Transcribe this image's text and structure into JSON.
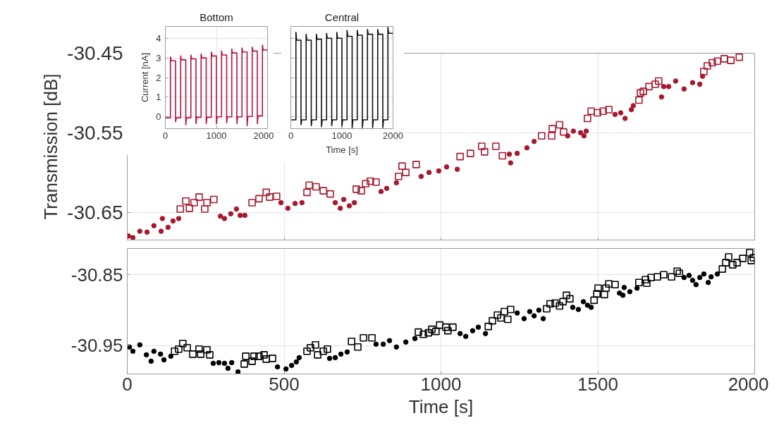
{
  "chart_data": [
    {
      "type": "scatter",
      "ylabel": "Transmission [dB]",
      "xlim": [
        0,
        2000
      ],
      "xticks": [
        0,
        500,
        1000,
        1500,
        2000
      ],
      "ylim": [
        -30.685,
        -30.45
      ],
      "yticks": [
        -30.45,
        -30.55,
        -30.65
      ],
      "grid": true,
      "tick_labels": "y",
      "series": [
        {
          "marker": "circle",
          "color": "#a6192e",
          "x": [
            4,
            18,
            40,
            63,
            85,
            108,
            112,
            130,
            146,
            164,
            297,
            310,
            330,
            348,
            360,
            375,
            490,
            512,
            535,
            557,
            663,
            679,
            690,
            708,
            724,
            809,
            827,
            858,
            937,
            962,
            993,
            1018,
            1052,
            1218,
            1222,
            1243,
            1274,
            1297,
            1404,
            1422,
            1445,
            1456,
            1463,
            1555,
            1573,
            1587,
            1607,
            1613,
            1703,
            1710,
            1726,
            1748,
            1775,
            1802,
            1825,
            1834
          ],
          "values": [
            -30.68,
            -30.682,
            -30.674,
            -30.675,
            -30.667,
            -30.674,
            -30.658,
            -30.669,
            -30.661,
            -30.658,
            -30.655,
            -30.658,
            -30.652,
            -30.646,
            -30.654,
            -30.654,
            -30.638,
            -30.645,
            -30.639,
            -30.638,
            -30.638,
            -30.645,
            -30.634,
            -30.642,
            -30.638,
            -30.624,
            -30.62,
            -30.613,
            -30.605,
            -30.6,
            -30.598,
            -30.593,
            -30.596,
            -30.577,
            -30.588,
            -30.576,
            -30.569,
            -30.561,
            -30.554,
            -30.548,
            -30.55,
            -30.554,
            -30.548,
            -30.527,
            -30.525,
            -30.532,
            -30.521,
            -30.516,
            -30.505,
            -30.492,
            -30.492,
            -30.485,
            -30.495,
            -30.487,
            -30.489,
            -30.479
          ]
        },
        {
          "marker": "square",
          "color": "#a6192e",
          "x": [
            169,
            187,
            198,
            213,
            229,
            247,
            254,
            276,
            398,
            420,
            443,
            454,
            476,
            573,
            580,
            602,
            625,
            647,
            730,
            746,
            760,
            775,
            793,
            865,
            876,
            888,
            921,
            1061,
            1094,
            1130,
            1139,
            1175,
            1196,
            1321,
            1353,
            1355,
            1378,
            1391,
            1467,
            1479,
            1499,
            1517,
            1535,
            1631,
            1636,
            1645,
            1663,
            1683,
            1694,
            1838,
            1849,
            1865,
            1881,
            1903,
            1924,
            1951
          ],
          "values": [
            -30.646,
            -30.636,
            -30.645,
            -30.638,
            -30.631,
            -30.646,
            -30.638,
            -30.634,
            -30.638,
            -30.633,
            -30.625,
            -30.631,
            -30.63,
            -30.625,
            -30.616,
            -30.618,
            -30.623,
            -30.627,
            -30.621,
            -30.623,
            -30.614,
            -30.611,
            -30.612,
            -30.605,
            -30.592,
            -30.6,
            -30.59,
            -30.58,
            -30.576,
            -30.567,
            -30.574,
            -30.567,
            -30.579,
            -30.554,
            -30.554,
            -30.545,
            -30.54,
            -30.549,
            -30.532,
            -30.523,
            -30.525,
            -30.523,
            -30.521,
            -30.509,
            -30.5,
            -30.498,
            -30.492,
            -30.489,
            -30.485,
            -30.473,
            -30.466,
            -30.462,
            -30.46,
            -30.457,
            -30.459,
            -30.455
          ]
        }
      ]
    },
    {
      "type": "scatter",
      "xlabel": "Time [s]",
      "xlim": [
        0,
        2000
      ],
      "xticks": [
        0,
        500,
        1000,
        1500,
        2000
      ],
      "ylim": [
        -30.99,
        -30.813
      ],
      "yticks": [
        -30.85,
        -30.95
      ],
      "grid": true,
      "series": [
        {
          "marker": "circle",
          "color": "#000000",
          "x": [
            7,
            18,
            40,
            61,
            76,
            85,
            106,
            117,
            139,
            274,
            292,
            310,
            321,
            333,
            353,
            479,
            506,
            524,
            539,
            548,
            645,
            663,
            681,
            701,
            793,
            816,
            836,
            858,
            888,
            917,
            1061,
            1079,
            1101,
            1119,
            1142,
            1243,
            1265,
            1283,
            1297,
            1312,
            1326,
            1420,
            1438,
            1454,
            1467,
            1479,
            1569,
            1584,
            1580,
            1602,
            1625,
            1775,
            1791,
            1802,
            1813,
            1825,
            1838,
            1852,
            1861,
            1881
          ],
          "values": [
            -30.952,
            -30.958,
            -30.949,
            -30.963,
            -30.972,
            -30.958,
            -30.962,
            -30.97,
            -30.965,
            -30.975,
            -30.974,
            -30.975,
            -30.982,
            -30.974,
            -30.987,
            -30.98,
            -30.983,
            -30.978,
            -30.973,
            -30.967,
            -30.968,
            -30.967,
            -30.962,
            -30.959,
            -30.948,
            -30.948,
            -30.943,
            -30.952,
            -30.945,
            -30.94,
            -30.933,
            -30.937,
            -30.929,
            -30.924,
            -30.933,
            -30.904,
            -30.912,
            -30.902,
            -30.908,
            -30.9,
            -30.912,
            -30.896,
            -30.899,
            -30.888,
            -30.893,
            -30.896,
            -30.876,
            -30.868,
            -30.879,
            -30.874,
            -30.869,
            -30.854,
            -30.851,
            -30.858,
            -30.864,
            -30.854,
            -30.849,
            -30.861,
            -30.853,
            -30.849
          ]
        },
        {
          "marker": "square",
          "color": "#000000",
          "x": [
            151,
            164,
            177,
            191,
            209,
            229,
            234,
            254,
            263,
            373,
            378,
            398,
            404,
            420,
            436,
            443,
            463,
            573,
            584,
            600,
            607,
            625,
            638,
            715,
            735,
            753,
            780,
            928,
            944,
            960,
            971,
            984,
            996,
            1016,
            1022,
            1038,
            1151,
            1164,
            1180,
            1191,
            1202,
            1213,
            1222,
            1337,
            1348,
            1364,
            1378,
            1389,
            1400,
            1411,
            1488,
            1497,
            1501,
            1521,
            1526,
            1535,
            1555,
            1631,
            1652,
            1656,
            1670,
            1690,
            1710,
            1735,
            1753,
            1760,
            1897,
            1908,
            1917,
            1930,
            1944,
            1962,
            1984,
            1989,
            1996
          ],
          "values": [
            -30.958,
            -30.955,
            -30.947,
            -30.953,
            -30.962,
            -30.955,
            -30.962,
            -30.956,
            -30.963,
            -30.976,
            -30.965,
            -30.972,
            -30.965,
            -30.965,
            -30.963,
            -30.969,
            -30.968,
            -30.958,
            -30.953,
            -30.949,
            -30.963,
            -30.958,
            -30.955,
            -30.944,
            -30.952,
            -30.939,
            -30.939,
            -30.931,
            -30.934,
            -30.932,
            -30.927,
            -30.93,
            -30.921,
            -30.924,
            -30.929,
            -30.924,
            -30.923,
            -30.915,
            -30.907,
            -30.911,
            -30.902,
            -30.913,
            -30.899,
            -30.898,
            -30.891,
            -30.89,
            -30.894,
            -30.888,
            -30.879,
            -30.884,
            -30.886,
            -30.877,
            -30.869,
            -30.878,
            -30.869,
            -30.863,
            -30.864,
            -30.861,
            -30.857,
            -30.862,
            -30.854,
            -30.853,
            -30.85,
            -30.853,
            -30.845,
            -30.848,
            -30.842,
            -30.833,
            -30.825,
            -30.836,
            -30.833,
            -30.827,
            -30.819,
            -30.83,
            -30.826
          ]
        }
      ]
    },
    {
      "type": "line",
      "title": "Bottom",
      "ylabel": "Current [nA]",
      "xlim": [
        0,
        2000
      ],
      "xticks": [
        0,
        1000,
        2000
      ],
      "ylim": [
        -0.6,
        4.6
      ],
      "yticks": [
        0,
        1,
        2,
        3,
        4
      ],
      "grid": true,
      "series": [
        {
          "color": "#b5123a",
          "x": [
            0,
            100,
            100,
            115,
            200,
            200,
            215,
            300,
            300,
            315,
            400,
            400,
            415,
            500,
            500,
            515,
            600,
            600,
            615,
            700,
            700,
            715,
            800,
            800,
            815,
            900,
            900,
            915,
            1000,
            1000,
            1015,
            1100,
            1100,
            1115,
            1200,
            1200,
            1215,
            1300,
            1300,
            1315,
            1400,
            1400,
            1415,
            1500,
            1500,
            1515,
            1600,
            1600,
            1615,
            1700,
            1700,
            1715,
            1800,
            1800,
            1815,
            1900,
            1900,
            1915,
            2000
          ],
          "values": [
            -0.05,
            -0.05,
            3.05,
            2.85,
            2.85,
            -0.25,
            -0.05,
            -0.05,
            3.1,
            2.9,
            2.9,
            -0.4,
            -0.05,
            -0.05,
            3.15,
            2.95,
            2.95,
            -0.35,
            -0.02,
            -0.02,
            3.2,
            3.0,
            3.0,
            -0.35,
            -0.02,
            -0.02,
            3.3,
            3.1,
            3.1,
            -0.35,
            0,
            0,
            3.35,
            3.15,
            3.15,
            -0.3,
            0,
            0,
            3.45,
            3.25,
            3.25,
            -0.35,
            0,
            0,
            3.5,
            3.3,
            3.3,
            -0.45,
            0.02,
            0.02,
            3.55,
            3.35,
            3.35,
            -0.35,
            0.05,
            0.05,
            3.65,
            3.4,
            3.4
          ]
        }
      ]
    },
    {
      "type": "line",
      "title": "Central",
      "xlabel": "Time [s]",
      "xlim": [
        0,
        2000
      ],
      "xticks": [
        0,
        1000,
        2000
      ],
      "ylim": [
        -0.6,
        4.6
      ],
      "yticks": [
        0,
        1,
        2,
        3,
        4
      ],
      "grid": true,
      "tick_labels": "x",
      "series": [
        {
          "color": "#111111",
          "x": [
            0,
            100,
            100,
            115,
            200,
            200,
            215,
            300,
            300,
            315,
            400,
            400,
            415,
            500,
            500,
            515,
            600,
            600,
            615,
            700,
            700,
            715,
            800,
            800,
            815,
            900,
            900,
            915,
            1000,
            1000,
            1015,
            1100,
            1100,
            1115,
            1200,
            1200,
            1215,
            1300,
            1300,
            1315,
            1400,
            1400,
            1415,
            1500,
            1500,
            1515,
            1600,
            1600,
            1615,
            1700,
            1700,
            1715,
            1800,
            1800,
            1815,
            1900,
            1900,
            1915,
            2000
          ],
          "values": [
            -0.15,
            -0.15,
            4.3,
            3.9,
            3.9,
            -0.4,
            -0.15,
            -0.15,
            4.2,
            3.9,
            3.9,
            -0.45,
            -0.15,
            -0.15,
            4.2,
            3.95,
            3.95,
            -0.5,
            -0.15,
            -0.15,
            4.25,
            4.0,
            4.0,
            -0.45,
            -0.15,
            -0.15,
            4.3,
            4.0,
            4.0,
            -0.5,
            -0.15,
            -0.15,
            4.4,
            4.1,
            4.1,
            -0.55,
            -0.15,
            -0.15,
            4.4,
            4.15,
            4.15,
            -0.55,
            -0.15,
            -0.15,
            4.45,
            4.2,
            4.2,
            -0.55,
            -0.15,
            -0.15,
            4.45,
            4.2,
            4.2,
            -0.55,
            -0.15,
            -0.15,
            4.55,
            4.25,
            4.25
          ]
        }
      ]
    }
  ]
}
